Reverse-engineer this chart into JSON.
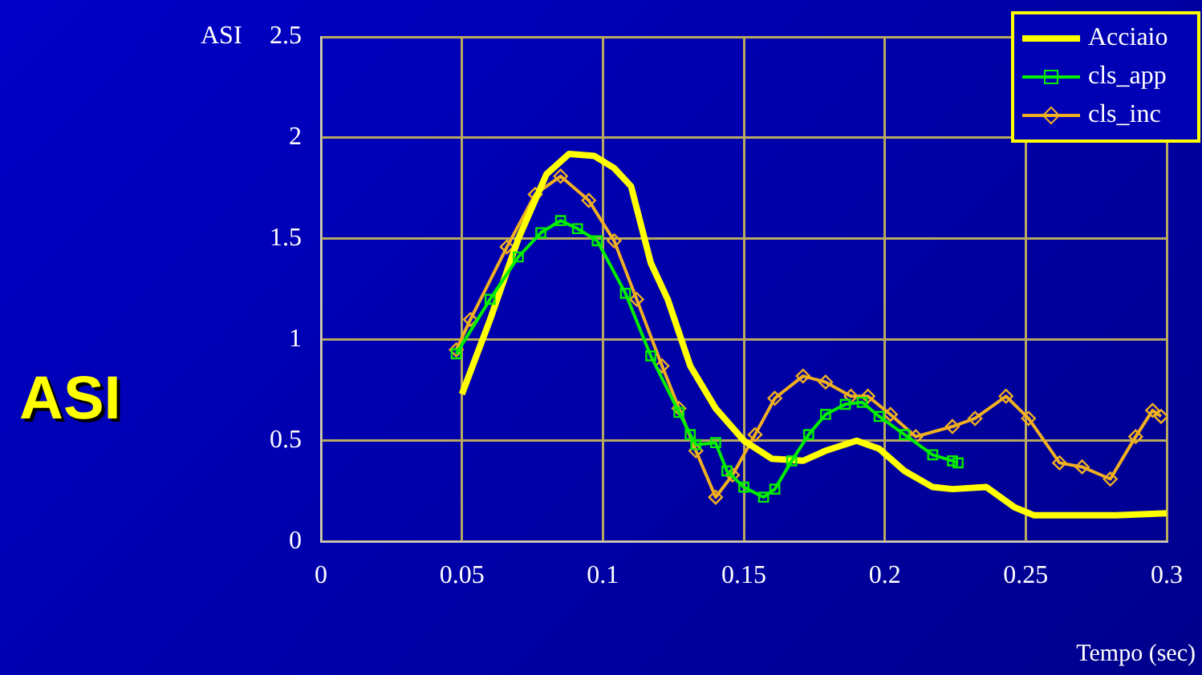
{
  "chart_data": {
    "type": "line",
    "title": "ASI",
    "ylabel": "ASI",
    "xlabel": "Tempo (sec)",
    "xlim": [
      0,
      0.3
    ],
    "xticks": [
      0,
      0.05,
      0.1,
      0.15,
      0.2,
      0.25,
      0.3
    ],
    "ylim": [
      0,
      2.5
    ],
    "yticks": [
      0,
      0.5,
      1,
      1.5,
      2,
      2.5
    ],
    "grid": true,
    "legend": "top right",
    "series": [
      {
        "name": "Acciaio",
        "color": "#ffff00",
        "marker": "none",
        "x": [
          0.05,
          0.06,
          0.07,
          0.08,
          0.088,
          0.097,
          0.104,
          0.11,
          0.117,
          0.123,
          0.131,
          0.14,
          0.15,
          0.16,
          0.171,
          0.179,
          0.19,
          0.198,
          0.207,
          0.217,
          0.224,
          0.236,
          0.246,
          0.253,
          0.282,
          0.3
        ],
        "values": [
          0.73,
          1.1,
          1.5,
          1.82,
          1.92,
          1.91,
          1.85,
          1.76,
          1.38,
          1.2,
          0.87,
          0.66,
          0.5,
          0.41,
          0.4,
          0.45,
          0.5,
          0.46,
          0.35,
          0.27,
          0.26,
          0.27,
          0.17,
          0.13,
          0.13,
          0.14
        ]
      },
      {
        "name": "cls_app",
        "color": "#00ee00",
        "marker": "square",
        "x": [
          0.048,
          0.06,
          0.07,
          0.078,
          0.085,
          0.091,
          0.098,
          0.108,
          0.117,
          0.127,
          0.131,
          0.133,
          0.14,
          0.144,
          0.15,
          0.157,
          0.161,
          0.167,
          0.173,
          0.179,
          0.186,
          0.192,
          0.198,
          0.207,
          0.217,
          0.224,
          0.226
        ],
        "values": [
          0.93,
          1.2,
          1.41,
          1.53,
          1.59,
          1.55,
          1.49,
          1.23,
          0.92,
          0.64,
          0.53,
          0.48,
          0.49,
          0.35,
          0.27,
          0.22,
          0.26,
          0.4,
          0.53,
          0.63,
          0.68,
          0.69,
          0.62,
          0.53,
          0.43,
          0.4,
          0.39
        ]
      },
      {
        "name": "cls_inc",
        "color": "#f0b020",
        "marker": "diamond",
        "x": [
          0.048,
          0.053,
          0.066,
          0.076,
          0.085,
          0.095,
          0.104,
          0.112,
          0.121,
          0.127,
          0.133,
          0.14,
          0.146,
          0.154,
          0.161,
          0.171,
          0.179,
          0.188,
          0.194,
          0.202,
          0.211,
          0.224,
          0.232,
          0.243,
          0.251,
          0.262,
          0.27,
          0.28,
          0.289,
          0.295,
          0.298
        ],
        "values": [
          0.95,
          1.1,
          1.46,
          1.72,
          1.81,
          1.69,
          1.49,
          1.2,
          0.87,
          0.66,
          0.45,
          0.22,
          0.33,
          0.53,
          0.71,
          0.82,
          0.79,
          0.72,
          0.72,
          0.63,
          0.52,
          0.57,
          0.61,
          0.72,
          0.61,
          0.39,
          0.37,
          0.31,
          0.52,
          0.65,
          0.62
        ]
      }
    ]
  }
}
